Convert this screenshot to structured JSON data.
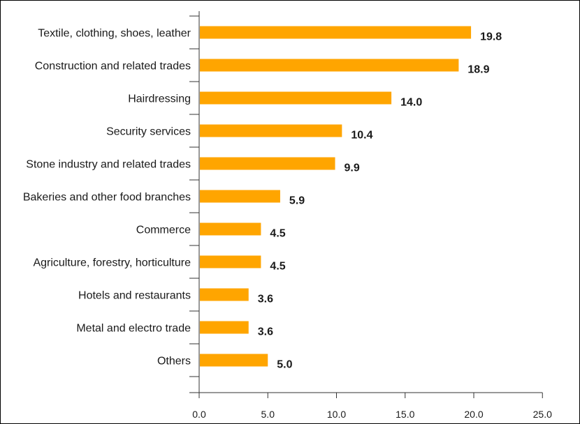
{
  "chart_data": {
    "type": "bar",
    "orientation": "horizontal",
    "categories": [
      "Textile, clothing, shoes, leather",
      "Construction and related trades",
      "Hairdressing",
      "Security services",
      "Stone industry and related trades",
      "Bakeries and other food branches",
      "Commerce",
      "Agriculture, forestry, horticulture",
      "Hotels and restaurants",
      "Metal and electro trade",
      "Others"
    ],
    "values": [
      19.8,
      18.9,
      14.0,
      10.4,
      9.9,
      5.9,
      4.5,
      4.5,
      3.6,
      3.6,
      5.0
    ],
    "value_labels": [
      "19.8",
      "18.9",
      "14.0",
      "10.4",
      "9.9",
      "5.9",
      "4.5",
      "4.5",
      "3.6",
      "3.6",
      "5.0"
    ],
    "xlim": [
      0,
      25
    ],
    "xticks": [
      "0.0",
      "5.0",
      "10.0",
      "15.0",
      "20.0",
      "25.0"
    ],
    "xtick_values": [
      0,
      5,
      10,
      15,
      20,
      25
    ],
    "grid": false,
    "bar_color": "#FFA500",
    "axis_color": "#333333"
  }
}
